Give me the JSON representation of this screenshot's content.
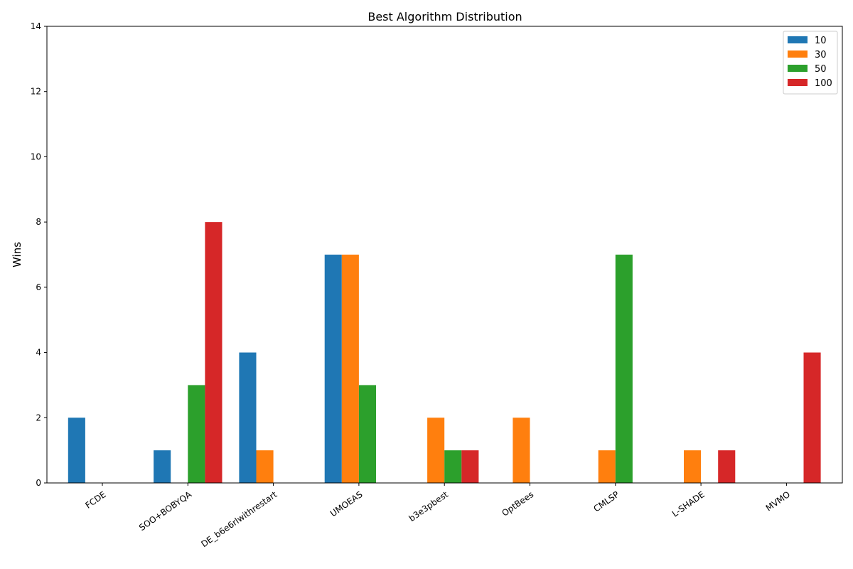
{
  "chart_data": {
    "type": "bar",
    "title": "Best Algorithm Distribution",
    "xlabel": "",
    "ylabel": "Wins",
    "ylim": [
      0,
      14
    ],
    "yticks": [
      0,
      2,
      4,
      6,
      8,
      10,
      12,
      14
    ],
    "grid": false,
    "legend_position": "top-right",
    "categories": [
      "FCDE",
      "SOO+BOBYQA",
      "DE_b6e6rlwithrestart",
      "UMOEAS",
      "b3e3pbest",
      "OptBees",
      "CMLSP",
      "L-SHADE",
      "MVMO"
    ],
    "series": [
      {
        "name": "10",
        "color": "#1f77b4",
        "values": [
          2,
          1,
          4,
          7,
          0,
          0,
          0,
          0,
          0
        ]
      },
      {
        "name": "30",
        "color": "#ff7f0e",
        "values": [
          0,
          0,
          1,
          7,
          2,
          2,
          1,
          1,
          0
        ]
      },
      {
        "name": "50",
        "color": "#2ca02c",
        "values": [
          0,
          3,
          0,
          3,
          1,
          0,
          7,
          0,
          0
        ]
      },
      {
        "name": "100",
        "color": "#d62728",
        "values": [
          0,
          8,
          0,
          0,
          1,
          0,
          0,
          1,
          4
        ]
      }
    ]
  }
}
